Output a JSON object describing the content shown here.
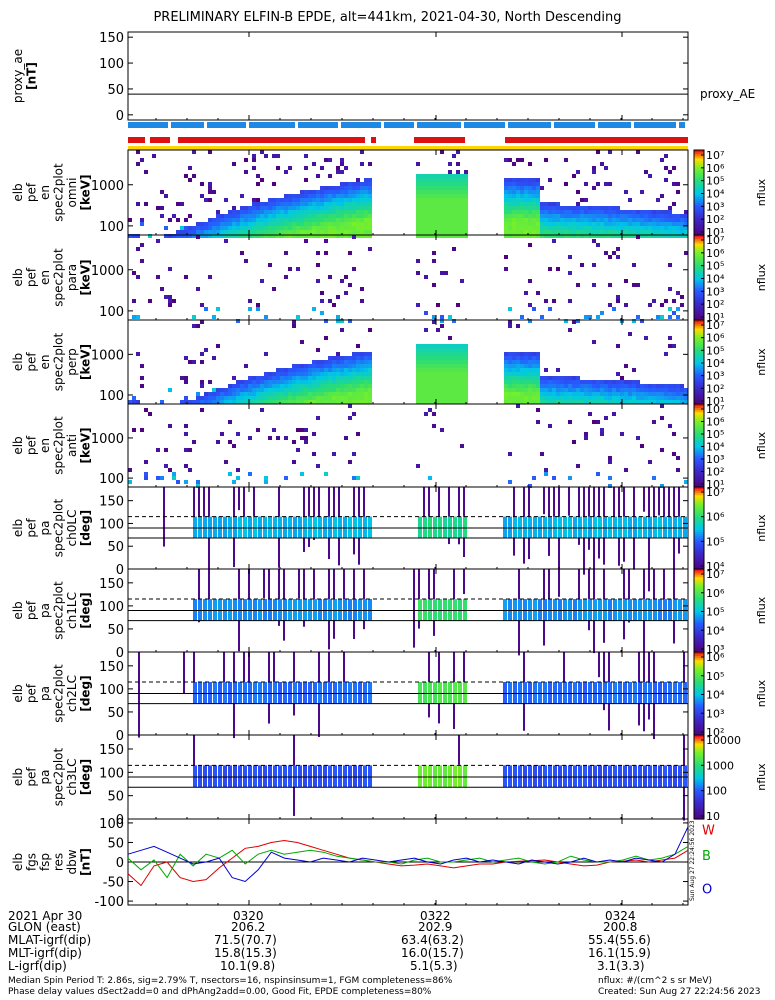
{
  "title": "PRELIMINARY ELFIN-B EPDE, alt=441km, 2021-04-30, North Descending",
  "colors": {
    "blue_bar": "#1e88e5",
    "red_bar": "#e01010",
    "yellow_bar": "#ffd500",
    "trace_red": "#dd0000",
    "trace_green": "#00aa00",
    "trace_blue": "#0000cc"
  },
  "chart_data": [
    {
      "type": "line",
      "name": "ae",
      "ylabel": [
        "proxy_ae",
        "[nT]"
      ],
      "yticks": [
        "150",
        "100",
        "50",
        "0"
      ],
      "ylim": [
        -10,
        160
      ],
      "label_right": "proxy_AE",
      "series": [
        {
          "name": "proxy_AE",
          "values": [
            40,
            40
          ]
        }
      ]
    },
    {
      "type": "heatmap",
      "name": "en-omni",
      "ylabel": [
        "elb",
        "pef",
        "en",
        "spec2plot",
        "omni",
        "[keV]"
      ],
      "yticks": [
        "1000",
        "100"
      ],
      "yscale": "log",
      "ylim": [
        60,
        7000
      ],
      "colorbar": {
        "ticks": [
          "10⁷",
          "10⁶",
          "10⁵",
          "10⁴",
          "10³",
          "10²",
          "10¹"
        ],
        "label": "nflux"
      }
    },
    {
      "type": "heatmap",
      "name": "en-para",
      "ylabel": [
        "elb",
        "pef",
        "en",
        "spec2plot",
        "para",
        "[keV]"
      ],
      "yticks": [
        "1000",
        "100"
      ],
      "yscale": "log",
      "ylim": [
        60,
        7000
      ],
      "colorbar": {
        "ticks": [
          "10⁷",
          "10⁶",
          "10⁵",
          "10⁴",
          "10³",
          "10²",
          "10¹"
        ],
        "label": "nflux"
      }
    },
    {
      "type": "heatmap",
      "name": "en-perp",
      "ylabel": [
        "elb",
        "pef",
        "en",
        "spec2plot",
        "perp",
        "[keV]"
      ],
      "yticks": [
        "1000",
        "100"
      ],
      "yscale": "log",
      "ylim": [
        60,
        7000
      ],
      "colorbar": {
        "ticks": [
          "10⁷",
          "10⁶",
          "10⁵",
          "10⁴",
          "10³",
          "10²",
          "10¹"
        ],
        "label": "nflux"
      }
    },
    {
      "type": "heatmap",
      "name": "en-anti",
      "ylabel": [
        "elb",
        "pef",
        "en",
        "spec2plot",
        "anti",
        "[keV]"
      ],
      "yticks": [
        "1000",
        "100"
      ],
      "yscale": "log",
      "ylim": [
        60,
        7000
      ],
      "colorbar": {
        "ticks": [
          "10⁷",
          "10⁶",
          "10⁵",
          "10⁴",
          "10³",
          "10²",
          "10¹"
        ],
        "label": "nflux"
      }
    },
    {
      "type": "heatmap",
      "name": "pa-ch0",
      "ylabel": [
        "elb",
        "pef",
        "pa",
        "spec2plot",
        "ch0LC",
        "[deg]"
      ],
      "yticks": [
        "150",
        "100",
        "50",
        "0"
      ],
      "ylim": [
        0,
        180
      ],
      "reflines": [
        90,
        68
      ],
      "dashed": [
        115
      ],
      "colorbar": {
        "ticks": [
          "10⁷",
          "10⁶",
          "10⁵",
          "10⁴"
        ],
        "label": "nflux"
      }
    },
    {
      "type": "heatmap",
      "name": "pa-ch1",
      "ylabel": [
        "elb",
        "pef",
        "pa",
        "spec2plot",
        "ch1LC",
        "[deg]"
      ],
      "yticks": [
        "150",
        "100",
        "50",
        "0"
      ],
      "ylim": [
        0,
        180
      ],
      "reflines": [
        90,
        68
      ],
      "dashed": [
        115
      ],
      "colorbar": {
        "ticks": [
          "10⁷",
          "10⁶",
          "10⁵",
          "10⁴",
          "10³"
        ],
        "label": "nflux"
      }
    },
    {
      "type": "heatmap",
      "name": "pa-ch2",
      "ylabel": [
        "elb",
        "pef",
        "pa",
        "spec2plot",
        "ch2LC",
        "[deg]"
      ],
      "yticks": [
        "150",
        "100",
        "50",
        "0"
      ],
      "ylim": [
        0,
        180
      ],
      "reflines": [
        90,
        68
      ],
      "dashed": [
        115
      ],
      "colorbar": {
        "ticks": [
          "10⁶",
          "10⁵",
          "10⁴",
          "10³",
          "10²"
        ],
        "label": "nflux"
      }
    },
    {
      "type": "heatmap",
      "name": "pa-ch3",
      "ylabel": [
        "elb",
        "pef",
        "pa",
        "spec2plot",
        "ch3LC",
        "[deg]"
      ],
      "yticks": [
        "150",
        "100",
        "50",
        "0"
      ],
      "ylim": [
        0,
        180
      ],
      "reflines": [
        90,
        68
      ],
      "dashed": [
        115
      ],
      "colorbar": {
        "ticks": [
          "10000",
          "1000",
          "100",
          "10"
        ],
        "label": "nflux"
      }
    },
    {
      "type": "line",
      "name": "fgs",
      "ylabel": [
        "elb",
        "fgs",
        "fsp",
        "res",
        "dbw",
        "[nT]"
      ],
      "yticks": [
        "100",
        "50",
        "0",
        "-50",
        "-100"
      ],
      "ylim": [
        -110,
        110
      ],
      "legend": [
        "W",
        "B",
        "O"
      ],
      "series": [
        {
          "name": "W",
          "values": [
            -30,
            -60,
            -10,
            0,
            -40,
            -50,
            -45,
            -15,
            10,
            35,
            40,
            50,
            55,
            50,
            40,
            30,
            20,
            10,
            5,
            0,
            -5,
            -10,
            -8,
            -5,
            -10,
            -15,
            -10,
            -5,
            -5,
            0,
            2,
            3,
            5,
            0,
            -5,
            -10,
            -8,
            0,
            2,
            5,
            0,
            5,
            10,
            30
          ]
        },
        {
          "name": "B",
          "values": [
            10,
            -20,
            5,
            -40,
            20,
            -10,
            20,
            10,
            30,
            -5,
            20,
            30,
            20,
            25,
            30,
            25,
            15,
            10,
            5,
            0,
            0,
            -5,
            5,
            10,
            0,
            0,
            5,
            10,
            0,
            5,
            10,
            0,
            -5,
            0,
            15,
            5,
            0,
            0,
            5,
            15,
            5,
            10,
            20,
            40
          ]
        },
        {
          "name": "O",
          "values": [
            20,
            30,
            40,
            25,
            10,
            -5,
            0,
            10,
            -40,
            -50,
            -20,
            25,
            10,
            5,
            0,
            10,
            5,
            0,
            10,
            5,
            0,
            5,
            10,
            0,
            -5,
            5,
            10,
            0,
            5,
            0,
            -5,
            5,
            0,
            -5,
            0,
            10,
            0,
            5,
            0,
            10,
            5,
            0,
            20,
            90
          ]
        }
      ]
    }
  ],
  "xaxis": {
    "ticks": [
      "0320",
      "0322",
      "0324"
    ],
    "rows": [
      {
        "label": "2021 Apr 30",
        "values": [
          "0320",
          "0322",
          "0324"
        ]
      },
      {
        "label": "GLON (east)",
        "values": [
          "206.2",
          "202.9",
          "200.8"
        ]
      },
      {
        "label": "MLAT-igrf(dip)",
        "values": [
          "71.5(70.7)",
          "63.4(63.2)",
          "55.4(55.6)"
        ]
      },
      {
        "label": "MLT-igrf(dip)",
        "values": [
          "15.8(15.3)",
          "16.0(15.7)",
          "16.1(15.9)"
        ]
      },
      {
        "label": "L-igrf(dip)",
        "values": [
          "10.1(9.8)",
          "5.1(5.3)",
          "3.1(3.3)"
        ]
      }
    ]
  },
  "footer": {
    "line1": "Median Spin Period T: 2.86s, sig=2.79% T, nsectors=16, nspinsinsum=1, FGM completeness=86%",
    "line2": "Phase delay values dSect2add=0 and dPhAng2add=0.00, Good Fit, EPDE completeness=80%",
    "right1": "nflux: #/(cm^2 s sr MeV)",
    "right2": "Created: Sun Aug 27 22:24:56 2023",
    "stamp": "Sun Aug 27 22:24:56 2023"
  }
}
